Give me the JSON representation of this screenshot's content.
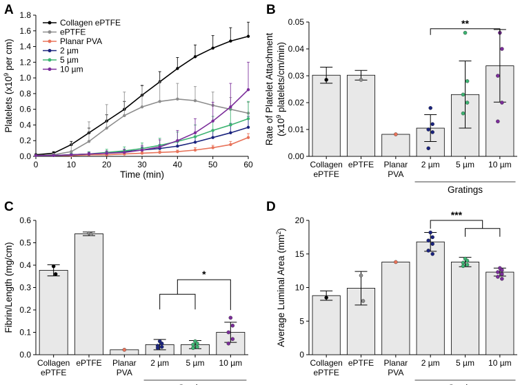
{
  "colors": {
    "bar_fill": "#e8e8e8",
    "collagen": "#000000",
    "eptfe": "#8c8c8c",
    "pva": "#e8735a",
    "g2": "#1a237e",
    "g5": "#3cb371",
    "g10": "#7b2d9a"
  },
  "chart_data": [
    {
      "panel": "A",
      "type": "line",
      "xlabel": "Time (min)",
      "ylabel_main": "Platelets (x10",
      "ylabel_sup": "9",
      "ylabel_tail": " per cm)",
      "xlim": [
        0,
        60
      ],
      "ylim": [
        0,
        1.8
      ],
      "xticks": [
        0,
        10,
        20,
        30,
        40,
        50,
        60
      ],
      "yticks": [
        0,
        0.2,
        0.4,
        0.6,
        0.8,
        1.0,
        1.2,
        1.4,
        1.6,
        1.8
      ],
      "ytick_labels": [
        "0.0",
        "0.2",
        "0.4",
        "0.6",
        "0.8",
        "1.0",
        "1.2",
        "1.4",
        "1.6",
        "1.8"
      ],
      "series": [
        {
          "name": "Collagen ePTFE",
          "color_key": "collagen",
          "x": [
            0,
            5,
            10,
            15,
            20,
            25,
            30,
            35,
            40,
            45,
            50,
            55,
            60
          ],
          "y": [
            0.02,
            0.04,
            0.15,
            0.3,
            0.45,
            0.6,
            0.78,
            0.95,
            1.12,
            1.27,
            1.38,
            1.47,
            1.53
          ],
          "err": [
            0.01,
            0.02,
            0.04,
            0.06,
            0.08,
            0.1,
            0.12,
            0.13,
            0.14,
            0.15,
            0.16,
            0.17,
            0.18
          ]
        },
        {
          "name": "ePTFE",
          "color_key": "eptfe",
          "x": [
            0,
            5,
            10,
            15,
            20,
            25,
            30,
            35,
            40,
            45,
            50,
            55,
            60
          ],
          "y": [
            0.01,
            0.02,
            0.06,
            0.19,
            0.36,
            0.52,
            0.63,
            0.7,
            0.73,
            0.71,
            0.65,
            0.6,
            0.55
          ],
          "err": [
            0.01,
            0.02,
            0.1,
            0.25,
            0.3,
            0.3,
            0.28,
            0.25,
            0.2,
            0.18,
            0.17,
            0.15,
            0.14
          ]
        },
        {
          "name": "Planar PVA",
          "color_key": "pva",
          "x": [
            0,
            5,
            10,
            15,
            20,
            25,
            30,
            35,
            40,
            45,
            50,
            55,
            60
          ],
          "y": [
            0.01,
            0.01,
            0.01,
            0.02,
            0.02,
            0.03,
            0.04,
            0.05,
            0.06,
            0.08,
            0.11,
            0.15,
            0.24
          ],
          "err": [
            0.0,
            0.0,
            0.01,
            0.01,
            0.01,
            0.01,
            0.02,
            0.02,
            0.02,
            0.03,
            0.03,
            0.04,
            0.05
          ]
        },
        {
          "name": "2 µm",
          "color_key": "g2",
          "x": [
            0,
            5,
            10,
            15,
            20,
            25,
            30,
            35,
            40,
            45,
            50,
            55,
            60
          ],
          "y": [
            0.01,
            0.01,
            0.02,
            0.03,
            0.04,
            0.06,
            0.08,
            0.1,
            0.13,
            0.18,
            0.24,
            0.3,
            0.37
          ],
          "err": [
            0.0,
            0.01,
            0.01,
            0.02,
            0.02,
            0.03,
            0.04,
            0.05,
            0.07,
            0.08,
            0.1,
            0.12,
            0.14
          ]
        },
        {
          "name": "5 µm",
          "color_key": "g5",
          "x": [
            0,
            5,
            10,
            15,
            20,
            25,
            30,
            35,
            40,
            45,
            50,
            55,
            60
          ],
          "y": [
            0.01,
            0.01,
            0.02,
            0.03,
            0.05,
            0.07,
            0.1,
            0.14,
            0.19,
            0.25,
            0.33,
            0.4,
            0.48
          ],
          "err": [
            0.0,
            0.01,
            0.02,
            0.03,
            0.04,
            0.05,
            0.07,
            0.09,
            0.12,
            0.15,
            0.18,
            0.2,
            0.22
          ]
        },
        {
          "name": "10 µm",
          "color_key": "g10",
          "x": [
            0,
            5,
            10,
            15,
            20,
            25,
            30,
            35,
            40,
            45,
            50,
            55,
            60
          ],
          "y": [
            0.01,
            0.01,
            0.02,
            0.03,
            0.04,
            0.05,
            0.08,
            0.12,
            0.2,
            0.3,
            0.45,
            0.63,
            0.85
          ],
          "err": [
            0.0,
            0.01,
            0.01,
            0.02,
            0.03,
            0.04,
            0.06,
            0.09,
            0.13,
            0.18,
            0.24,
            0.3,
            0.35
          ]
        }
      ]
    },
    {
      "panel": "B",
      "type": "bar",
      "ylabel_line1": "Rate of Platelet Attachment",
      "ylabel_line2_main": "(x10",
      "ylabel_line2_sup": "9",
      "ylabel_line2_tail": " platelets/cm/min)",
      "ylim": [
        0,
        0.05
      ],
      "yticks": [
        0,
        0.01,
        0.02,
        0.03,
        0.04,
        0.05
      ],
      "ytick_labels": [
        "0.00",
        "0.01",
        "0.02",
        "0.03",
        "0.04",
        "0.05"
      ],
      "categories": [
        {
          "line1": "Collagen",
          "line2": "ePTFE",
          "color_key": "collagen",
          "value": 0.0302,
          "err": 0.003,
          "points": [
            0.0285
          ]
        },
        {
          "line1": "ePTFE",
          "line2": "",
          "color_key": "eptfe",
          "value": 0.0302,
          "err": 0.0018,
          "points": [
            0.0285
          ]
        },
        {
          "line1": "Planar",
          "line2": "PVA",
          "color_key": "pva",
          "value": 0.0082,
          "err": 0,
          "points": [
            0.0082
          ]
        },
        {
          "line1": "2 µm",
          "line2": "",
          "color_key": "g2",
          "value": 0.0105,
          "err": 0.005,
          "points": [
            0.018,
            0.012,
            0.01,
            0.009,
            0.003
          ]
        },
        {
          "line1": "5 µm",
          "line2": "",
          "color_key": "g5",
          "value": 0.023,
          "err": 0.0125,
          "points": [
            0.046,
            0.028,
            0.023,
            0.02,
            0.016
          ]
        },
        {
          "line1": "10 µm",
          "line2": "",
          "color_key": "g10",
          "value": 0.0337,
          "err": 0.0135,
          "points": [
            0.046,
            0.04,
            0.03,
            0.02,
            0.013
          ]
        }
      ],
      "group_label": "Gratings",
      "significance": [
        {
          "text": "**",
          "from": 3,
          "to": 5,
          "y": 0.0475
        }
      ]
    },
    {
      "panel": "C",
      "type": "bar",
      "ylabel": "Fibrin/Length (mg/cm)",
      "ylim": [
        0,
        0.6
      ],
      "yticks": [
        0,
        0.1,
        0.2,
        0.3,
        0.4,
        0.5,
        0.6
      ],
      "ytick_labels": [
        "0.0",
        "0.1",
        "0.2",
        "0.3",
        "0.4",
        "0.5",
        "0.6"
      ],
      "categories": [
        {
          "line1": "Collagen",
          "line2": "ePTFE",
          "color_key": "collagen",
          "value": 0.377,
          "err": 0.025,
          "points": [
            0.395,
            0.36
          ]
        },
        {
          "line1": "ePTFE",
          "line2": "",
          "color_key": "eptfe",
          "value": 0.54,
          "err": 0.008,
          "points": [
            0.543,
            0.538
          ]
        },
        {
          "line1": "Planar",
          "line2": "PVA",
          "color_key": "pva",
          "value": 0.022,
          "err": 0,
          "points": [
            0.022
          ]
        },
        {
          "line1": "2 µm",
          "line2": "",
          "color_key": "g2",
          "value": 0.045,
          "err": 0.023,
          "points": [
            0.06,
            0.05,
            0.04,
            0.035,
            0.03
          ]
        },
        {
          "line1": "5 µm",
          "line2": "",
          "color_key": "g5",
          "value": 0.045,
          "err": 0.018,
          "points": [
            0.06,
            0.05,
            0.045,
            0.035,
            0.03
          ]
        },
        {
          "line1": "10 µm",
          "line2": "",
          "color_key": "g10",
          "value": 0.1,
          "err": 0.045,
          "points": [
            0.165,
            0.13,
            0.1,
            0.07,
            0.05
          ]
        }
      ],
      "group_label": "Gratings",
      "significance": [
        {
          "text": "*",
          "group_from": 3,
          "group_to": 4,
          "to": 5,
          "y_group": 0.27,
          "y_top": 0.335
        }
      ]
    },
    {
      "panel": "D",
      "type": "bar",
      "ylabel_main": "Average Luminal Area (mm",
      "ylabel_sup": "2",
      "ylabel_tail": ")",
      "ylim": [
        0,
        20
      ],
      "yticks": [
        0,
        5,
        10,
        15,
        20
      ],
      "ytick_labels": [
        "0",
        "5",
        "10",
        "15",
        "20"
      ],
      "categories": [
        {
          "line1": "Collagen",
          "line2": "ePTFE",
          "color_key": "collagen",
          "value": 8.8,
          "err": 0.7,
          "points": [
            8.5
          ]
        },
        {
          "line1": "ePTFE",
          "line2": "",
          "color_key": "eptfe",
          "value": 9.9,
          "err": 2.5,
          "points": [
            11.8,
            8.0
          ]
        },
        {
          "line1": "Planar",
          "line2": "PVA",
          "color_key": "pva",
          "value": 13.8,
          "err": 0,
          "points": [
            13.8
          ]
        },
        {
          "line1": "2 µm",
          "line2": "",
          "color_key": "g2",
          "value": 16.8,
          "err": 1.4,
          "points": [
            18.2,
            17.5,
            17.0,
            16.5,
            15.5,
            15.0
          ]
        },
        {
          "line1": "5 µm",
          "line2": "",
          "color_key": "g5",
          "value": 13.8,
          "err": 0.7,
          "points": [
            14.3,
            14.0,
            13.7,
            13.4,
            13.2
          ]
        },
        {
          "line1": "10 µm",
          "line2": "",
          "color_key": "g10",
          "value": 12.3,
          "err": 0.6,
          "points": [
            12.9,
            12.6,
            12.3,
            12.0,
            11.6,
            11.3
          ]
        }
      ],
      "group_label": "Gratings",
      "significance": [
        {
          "text": "***",
          "from": 3,
          "to_group_from": 4,
          "to_group_to": 5,
          "y_top": 20.0,
          "y_group": 18.8
        }
      ]
    }
  ],
  "panels": {
    "A": "A",
    "B": "B",
    "C": "C",
    "D": "D"
  }
}
